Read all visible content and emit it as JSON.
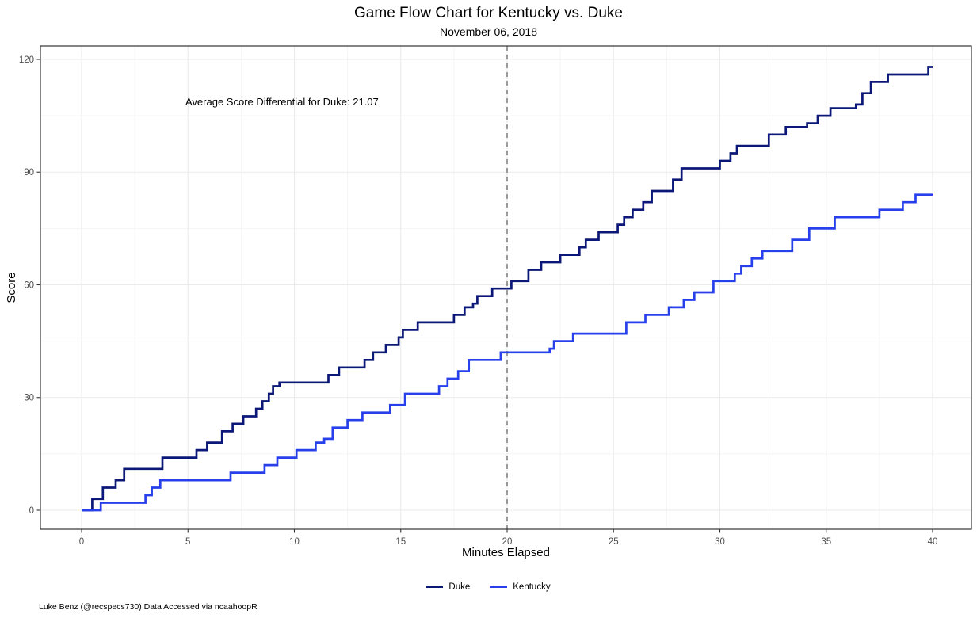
{
  "caption": "Luke Benz (@recspecs730) Data Accessed via ncaahoopR",
  "chart_data": {
    "type": "line",
    "subtype": "step",
    "title": "Game Flow Chart for Kentucky vs. Duke",
    "subtitle": "November 06, 2018",
    "xlabel": "Minutes Elapsed",
    "ylabel": "Score",
    "xlim": [
      0,
      40
    ],
    "ylim": [
      0,
      120
    ],
    "x_ticks": [
      0,
      5,
      10,
      15,
      20,
      25,
      30,
      35,
      40
    ],
    "y_ticks": [
      0,
      30,
      60,
      90,
      120
    ],
    "x_minor_ticks": [
      2.5,
      7.5,
      12.5,
      17.5,
      22.5,
      27.5,
      32.5,
      37.5
    ],
    "y_minor_ticks": [
      15,
      45,
      75,
      105
    ],
    "grid": "on",
    "halftime_line_x": 20,
    "halftime_line_style": "dashed-gray",
    "annotation": {
      "text": "Average Score Differential for Duke: 21.07",
      "x": 4.9,
      "y": 108.5
    },
    "legend": {
      "position": "bottom",
      "entries": [
        {
          "label": "Duke",
          "color": "#0c1878"
        },
        {
          "label": "Kentucky",
          "color": "#2840ec"
        }
      ]
    },
    "series": [
      {
        "name": "Duke",
        "color": "#0c1878",
        "final_score": 118,
        "points": [
          [
            0,
            0
          ],
          [
            0.5,
            3
          ],
          [
            1,
            6
          ],
          [
            1.6,
            8
          ],
          [
            2,
            11
          ],
          [
            3.8,
            14
          ],
          [
            5.4,
            16
          ],
          [
            5.9,
            18
          ],
          [
            6.6,
            21
          ],
          [
            7.1,
            23
          ],
          [
            7.6,
            25
          ],
          [
            8.2,
            27
          ],
          [
            8.5,
            29
          ],
          [
            8.8,
            31
          ],
          [
            9,
            33
          ],
          [
            9.3,
            34
          ],
          [
            11.6,
            36
          ],
          [
            12.1,
            38
          ],
          [
            13.3,
            40
          ],
          [
            13.7,
            42
          ],
          [
            14.3,
            44
          ],
          [
            14.9,
            46
          ],
          [
            15.1,
            48
          ],
          [
            15.8,
            50
          ],
          [
            17.5,
            52
          ],
          [
            18,
            54
          ],
          [
            18.4,
            55
          ],
          [
            18.6,
            57
          ],
          [
            19.3,
            59
          ],
          [
            20.2,
            61
          ],
          [
            21,
            64
          ],
          [
            21.6,
            66
          ],
          [
            22.5,
            68
          ],
          [
            23.4,
            70
          ],
          [
            23.7,
            72
          ],
          [
            24.3,
            74
          ],
          [
            25.2,
            76
          ],
          [
            25.5,
            78
          ],
          [
            25.9,
            80
          ],
          [
            26.4,
            82
          ],
          [
            26.8,
            85
          ],
          [
            27.8,
            88
          ],
          [
            28.2,
            91
          ],
          [
            30,
            93
          ],
          [
            30.5,
            95
          ],
          [
            30.8,
            97
          ],
          [
            32.3,
            100
          ],
          [
            33.1,
            102
          ],
          [
            34.1,
            103
          ],
          [
            34.6,
            105
          ],
          [
            35.2,
            107
          ],
          [
            36.4,
            108
          ],
          [
            36.7,
            111
          ],
          [
            37.1,
            114
          ],
          [
            37.9,
            116
          ],
          [
            39.8,
            118
          ],
          [
            40,
            118
          ]
        ]
      },
      {
        "name": "Kentucky",
        "color": "#2840ec",
        "final_score": 84,
        "points": [
          [
            0,
            0
          ],
          [
            0.9,
            2
          ],
          [
            3,
            4
          ],
          [
            3.3,
            6
          ],
          [
            3.7,
            8
          ],
          [
            7,
            10
          ],
          [
            8.6,
            12
          ],
          [
            9.2,
            14
          ],
          [
            10.1,
            16
          ],
          [
            11,
            18
          ],
          [
            11.4,
            19
          ],
          [
            11.8,
            22
          ],
          [
            12.5,
            24
          ],
          [
            13.2,
            26
          ],
          [
            14.5,
            28
          ],
          [
            15.2,
            31
          ],
          [
            16.8,
            33
          ],
          [
            17.2,
            35
          ],
          [
            17.7,
            37
          ],
          [
            18.2,
            40
          ],
          [
            19.7,
            42
          ],
          [
            22,
            43
          ],
          [
            22.2,
            45
          ],
          [
            23.1,
            47
          ],
          [
            25.6,
            50
          ],
          [
            26.5,
            52
          ],
          [
            27.6,
            54
          ],
          [
            28.3,
            56
          ],
          [
            28.8,
            58
          ],
          [
            29.7,
            61
          ],
          [
            30.7,
            63
          ],
          [
            31,
            65
          ],
          [
            31.5,
            67
          ],
          [
            32,
            69
          ],
          [
            33.4,
            72
          ],
          [
            34.2,
            75
          ],
          [
            35.4,
            78
          ],
          [
            37.5,
            80
          ],
          [
            38.6,
            82
          ],
          [
            39.2,
            84
          ],
          [
            40,
            84
          ]
        ]
      }
    ]
  }
}
